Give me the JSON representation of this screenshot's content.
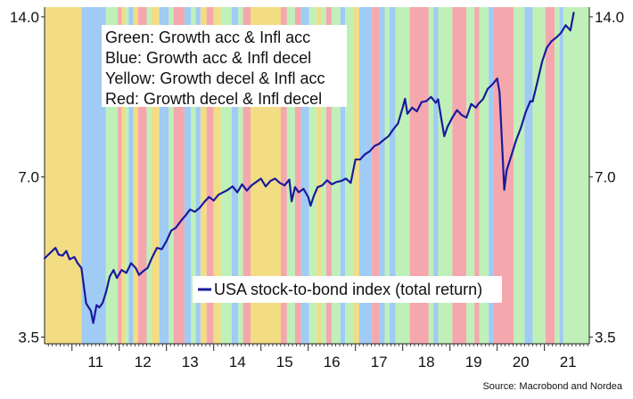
{
  "chart_data": {
    "type": "line",
    "title": "",
    "xlabel": "",
    "ylabel": "",
    "y_scale": "log",
    "ylim": [
      3.4,
      14.6
    ],
    "xlim": [
      2010.42,
      2021.95
    ],
    "y_ticks": [
      3.5,
      7.0,
      14.0
    ],
    "y_tick_labels": [
      "3.5",
      "7.0",
      "14.0"
    ],
    "x_tick_labels": [
      "11",
      "12",
      "13",
      "14",
      "15",
      "16",
      "17",
      "18",
      "19",
      "20",
      "21"
    ],
    "grid": false,
    "regime_legend": [
      {
        "text": "Green: Growth acc & Infl acc",
        "color": "#bff0b8"
      },
      {
        "text": "Blue: Growth acc & Infl decel",
        "color": "#9fcbf5"
      },
      {
        "text": "Yellow: Growth decel & Infl acc",
        "color": "#f2dc84"
      },
      {
        "text": "Red: Growth decel & Infl decel",
        "color": "#f4a8ad"
      }
    ],
    "regime_bands": [
      {
        "start": 2010.42,
        "end": 2011.2,
        "regime": "Yellow"
      },
      {
        "start": 2011.2,
        "end": 2011.72,
        "regime": "Blue"
      },
      {
        "start": 2011.72,
        "end": 2011.97,
        "regime": "Green"
      },
      {
        "start": 2011.97,
        "end": 2012.05,
        "regime": "Red"
      },
      {
        "start": 2012.05,
        "end": 2012.12,
        "regime": "Yellow"
      },
      {
        "start": 2012.12,
        "end": 2012.2,
        "regime": "Green"
      },
      {
        "start": 2012.2,
        "end": 2012.3,
        "regime": "Blue"
      },
      {
        "start": 2012.3,
        "end": 2012.4,
        "regime": "Yellow"
      },
      {
        "start": 2012.4,
        "end": 2012.58,
        "regime": "Red"
      },
      {
        "start": 2012.58,
        "end": 2012.68,
        "regime": "Green"
      },
      {
        "start": 2012.68,
        "end": 2012.85,
        "regime": "Yellow"
      },
      {
        "start": 2012.85,
        "end": 2013.05,
        "regime": "Blue"
      },
      {
        "start": 2013.05,
        "end": 2013.15,
        "regime": "Green"
      },
      {
        "start": 2013.15,
        "end": 2013.38,
        "regime": "Red"
      },
      {
        "start": 2013.38,
        "end": 2013.52,
        "regime": "Blue"
      },
      {
        "start": 2013.52,
        "end": 2013.62,
        "regime": "Green"
      },
      {
        "start": 2013.62,
        "end": 2013.72,
        "regime": "Blue"
      },
      {
        "start": 2013.72,
        "end": 2013.85,
        "regime": "Yellow"
      },
      {
        "start": 2013.85,
        "end": 2014.0,
        "regime": "Red"
      },
      {
        "start": 2014.0,
        "end": 2014.15,
        "regime": "Yellow"
      },
      {
        "start": 2014.15,
        "end": 2014.38,
        "regime": "Green"
      },
      {
        "start": 2014.38,
        "end": 2014.52,
        "regime": "Blue"
      },
      {
        "start": 2014.52,
        "end": 2014.62,
        "regime": "Green"
      },
      {
        "start": 2014.62,
        "end": 2014.78,
        "regime": "Red"
      },
      {
        "start": 2014.78,
        "end": 2015.42,
        "regime": "Yellow"
      },
      {
        "start": 2015.42,
        "end": 2015.55,
        "regime": "Red"
      },
      {
        "start": 2015.55,
        "end": 2015.72,
        "regime": "Green"
      },
      {
        "start": 2015.72,
        "end": 2015.85,
        "regime": "Red"
      },
      {
        "start": 2015.85,
        "end": 2016.02,
        "regime": "Blue"
      },
      {
        "start": 2016.02,
        "end": 2016.18,
        "regime": "Green"
      },
      {
        "start": 2016.18,
        "end": 2016.28,
        "regime": "Yellow"
      },
      {
        "start": 2016.28,
        "end": 2016.38,
        "regime": "Green"
      },
      {
        "start": 2016.38,
        "end": 2016.5,
        "regime": "Red"
      },
      {
        "start": 2016.5,
        "end": 2016.68,
        "regime": "Green"
      },
      {
        "start": 2016.68,
        "end": 2016.78,
        "regime": "Blue"
      },
      {
        "start": 2016.78,
        "end": 2016.95,
        "regime": "Green"
      },
      {
        "start": 2016.95,
        "end": 2017.08,
        "regime": "Yellow"
      },
      {
        "start": 2017.08,
        "end": 2017.35,
        "regime": "Blue"
      },
      {
        "start": 2017.35,
        "end": 2017.5,
        "regime": "Red"
      },
      {
        "start": 2017.5,
        "end": 2017.62,
        "regime": "Blue"
      },
      {
        "start": 2017.62,
        "end": 2017.72,
        "regime": "Green"
      },
      {
        "start": 2017.72,
        "end": 2017.85,
        "regime": "Blue"
      },
      {
        "start": 2017.85,
        "end": 2018.15,
        "regime": "Green"
      },
      {
        "start": 2018.15,
        "end": 2018.55,
        "regime": "Red"
      },
      {
        "start": 2018.55,
        "end": 2018.65,
        "regime": "Green"
      },
      {
        "start": 2018.65,
        "end": 2018.75,
        "regime": "Blue"
      },
      {
        "start": 2018.75,
        "end": 2019.05,
        "regime": "Green"
      },
      {
        "start": 2019.05,
        "end": 2019.35,
        "regime": "Red"
      },
      {
        "start": 2019.35,
        "end": 2019.52,
        "regime": "Green"
      },
      {
        "start": 2019.52,
        "end": 2019.62,
        "regime": "Red"
      },
      {
        "start": 2019.62,
        "end": 2019.82,
        "regime": "Green"
      },
      {
        "start": 2019.82,
        "end": 2019.92,
        "regime": "Blue"
      },
      {
        "start": 2019.92,
        "end": 2020.35,
        "regime": "Red"
      },
      {
        "start": 2020.35,
        "end": 2020.58,
        "regime": "Green"
      },
      {
        "start": 2020.58,
        "end": 2020.75,
        "regime": "Blue"
      },
      {
        "start": 2020.75,
        "end": 2021.02,
        "regime": "Green"
      },
      {
        "start": 2021.02,
        "end": 2021.22,
        "regime": "Red"
      },
      {
        "start": 2021.22,
        "end": 2021.32,
        "regime": "Green"
      },
      {
        "start": 2021.32,
        "end": 2021.4,
        "regime": "Blue"
      },
      {
        "start": 2021.4,
        "end": 2021.95,
        "regime": "Green"
      }
    ],
    "series": [
      {
        "name": "USA stock-to-bond index (total return)",
        "color": "#1a1a9c",
        "x": [
          2010.42,
          2010.55,
          2010.65,
          2010.72,
          2010.8,
          2010.88,
          2010.95,
          2011.05,
          2011.12,
          2011.2,
          2011.3,
          2011.4,
          2011.45,
          2011.52,
          2011.58,
          2011.65,
          2011.72,
          2011.8,
          2011.88,
          2011.95,
          2012.05,
          2012.15,
          2012.25,
          2012.35,
          2012.42,
          2012.5,
          2012.6,
          2012.7,
          2012.8,
          2012.9,
          2013.0,
          2013.1,
          2013.2,
          2013.3,
          2013.4,
          2013.5,
          2013.6,
          2013.7,
          2013.8,
          2013.9,
          2014.0,
          2014.1,
          2014.2,
          2014.3,
          2014.4,
          2014.5,
          2014.6,
          2014.7,
          2014.8,
          2014.9,
          2015.0,
          2015.1,
          2015.2,
          2015.3,
          2015.4,
          2015.5,
          2015.6,
          2015.65,
          2015.72,
          2015.8,
          2015.9,
          2016.0,
          2016.05,
          2016.12,
          2016.2,
          2016.3,
          2016.4,
          2016.5,
          2016.6,
          2016.7,
          2016.8,
          2016.9,
          2017.0,
          2017.1,
          2017.2,
          2017.3,
          2017.4,
          2017.5,
          2017.6,
          2017.7,
          2017.8,
          2017.9,
          2018.0,
          2018.05,
          2018.1,
          2018.2,
          2018.3,
          2018.4,
          2018.5,
          2018.6,
          2018.7,
          2018.75,
          2018.8,
          2018.88,
          2018.95,
          2019.05,
          2019.15,
          2019.25,
          2019.35,
          2019.45,
          2019.55,
          2019.6,
          2019.7,
          2019.8,
          2019.9,
          2020.0,
          2020.05,
          2020.1,
          2020.15,
          2020.2,
          2020.3,
          2020.4,
          2020.5,
          2020.6,
          2020.7,
          2020.75,
          2020.85,
          2020.95,
          2021.05,
          2021.15,
          2021.25,
          2021.35,
          2021.45,
          2021.55,
          2021.62
        ],
        "values": [
          4.92,
          5.05,
          5.15,
          5.0,
          4.98,
          5.08,
          4.9,
          4.95,
          4.82,
          4.72,
          4.05,
          3.92,
          3.72,
          4.02,
          3.98,
          4.06,
          4.25,
          4.55,
          4.68,
          4.52,
          4.68,
          4.62,
          4.82,
          4.72,
          4.58,
          4.65,
          4.72,
          4.95,
          5.15,
          5.12,
          5.3,
          5.55,
          5.62,
          5.78,
          5.92,
          6.08,
          6.02,
          6.12,
          6.28,
          6.42,
          6.32,
          6.48,
          6.55,
          6.62,
          6.72,
          6.55,
          6.78,
          6.6,
          6.75,
          6.85,
          6.95,
          6.72,
          6.88,
          6.95,
          6.82,
          6.75,
          6.92,
          6.3,
          6.7,
          6.55,
          6.65,
          6.42,
          6.18,
          6.45,
          6.7,
          6.75,
          6.9,
          6.78,
          6.85,
          6.88,
          6.95,
          6.82,
          7.55,
          7.55,
          7.72,
          7.82,
          8.0,
          8.08,
          8.22,
          8.35,
          8.6,
          8.82,
          9.45,
          9.82,
          9.2,
          9.45,
          9.3,
          9.68,
          9.72,
          9.9,
          9.65,
          9.8,
          9.2,
          8.35,
          8.7,
          9.05,
          9.35,
          9.15,
          9.05,
          9.6,
          9.45,
          9.6,
          9.8,
          10.25,
          10.45,
          10.72,
          10.1,
          8.2,
          6.62,
          7.2,
          7.68,
          8.2,
          8.65,
          9.25,
          9.72,
          9.7,
          10.55,
          11.52,
          12.25,
          12.6,
          12.8,
          13.05,
          13.5,
          13.2,
          14.25
        ]
      }
    ],
    "legend": {
      "text": "USA stock-to-bond index (total return)",
      "placement": "bottom-center"
    },
    "source": "Source: Macrobond and Nordea"
  }
}
